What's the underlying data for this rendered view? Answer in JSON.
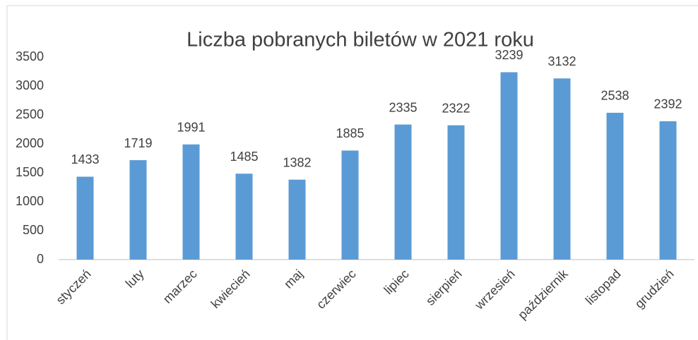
{
  "chart_data": {
    "type": "bar",
    "title": "Liczba pobranych biletów w 2021 roku",
    "categories": [
      "styczeń",
      "luty",
      "marzec",
      "kwiecień",
      "maj",
      "czerwiec",
      "lipiec",
      "sierpień",
      "wrzesień",
      "październik",
      "listopad",
      "grudzień"
    ],
    "values": [
      1433,
      1719,
      1991,
      1485,
      1382,
      1885,
      2335,
      2322,
      3239,
      3132,
      2538,
      2392
    ],
    "color": "#5b9bd5",
    "ylim": [
      0,
      3500
    ],
    "yticks": [
      0,
      500,
      1000,
      1500,
      2000,
      2500,
      3000,
      3500
    ],
    "grid": false
  }
}
